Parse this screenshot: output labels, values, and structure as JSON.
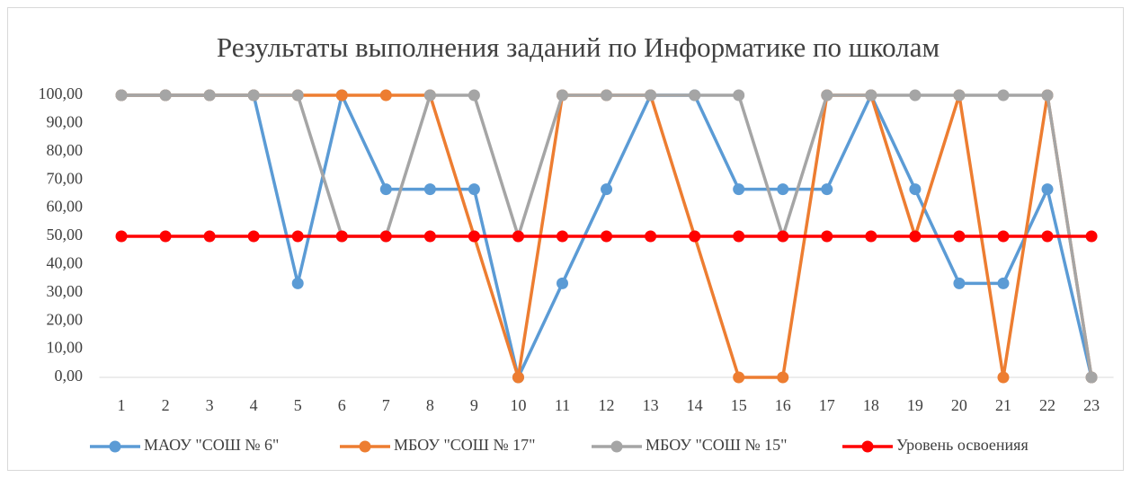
{
  "chart_data": {
    "type": "line",
    "title": "Результаты выполнения заданий по Информатике по школам",
    "categories": [
      "1",
      "2",
      "3",
      "4",
      "5",
      "6",
      "7",
      "8",
      "9",
      "10",
      "11",
      "12",
      "13",
      "14",
      "15",
      "16",
      "17",
      "18",
      "19",
      "20",
      "21",
      "22",
      "23"
    ],
    "series": [
      {
        "name": "МАОУ \"СОШ № 6\"",
        "color": "#5b9bd5",
        "values": [
          100,
          100,
          100,
          100,
          33.33,
          100,
          66.67,
          66.67,
          66.67,
          0,
          33.33,
          66.67,
          100,
          100,
          66.67,
          66.67,
          66.67,
          100,
          66.67,
          33.33,
          33.33,
          66.67,
          0
        ]
      },
      {
        "name": "МБОУ \"СОШ № 17\"",
        "color": "#ed7d31",
        "values": [
          100,
          100,
          100,
          100,
          100,
          100,
          100,
          100,
          50,
          0,
          100,
          100,
          100,
          50,
          0,
          0,
          100,
          100,
          50,
          100,
          0,
          100,
          0
        ]
      },
      {
        "name": "МБОУ \"СОШ № 15\"",
        "color": "#a5a5a5",
        "values": [
          100,
          100,
          100,
          100,
          100,
          50,
          50,
          100,
          100,
          50,
          100,
          100,
          100,
          100,
          100,
          50,
          100,
          100,
          100,
          100,
          100,
          100,
          0
        ]
      },
      {
        "name": "Уровень освоенияя",
        "color": "#ff0000",
        "values": [
          50,
          50,
          50,
          50,
          50,
          50,
          50,
          50,
          50,
          50,
          50,
          50,
          50,
          50,
          50,
          50,
          50,
          50,
          50,
          50,
          50,
          50,
          50
        ]
      }
    ],
    "ylim": [
      0,
      100
    ],
    "yticks": [
      {
        "value": 0,
        "label": "0,00"
      },
      {
        "value": 10,
        "label": "10,00"
      },
      {
        "value": 20,
        "label": "20,00"
      },
      {
        "value": 30,
        "label": "30,00"
      },
      {
        "value": 40,
        "label": "40,00"
      },
      {
        "value": 50,
        "label": "50,00"
      },
      {
        "value": 60,
        "label": "60,00"
      },
      {
        "value": 70,
        "label": "70,00"
      },
      {
        "value": 80,
        "label": "80,00"
      },
      {
        "value": 90,
        "label": "90,00"
      },
      {
        "value": 100,
        "label": "100,00"
      }
    ],
    "legend": "bottom"
  }
}
